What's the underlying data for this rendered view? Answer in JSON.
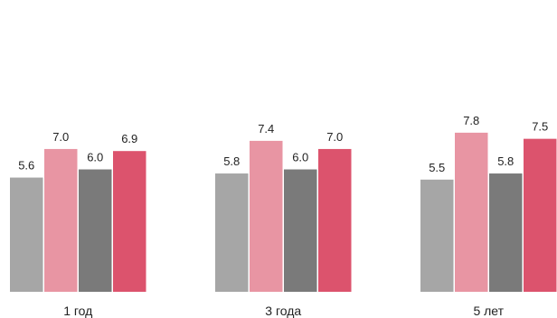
{
  "chart_data": {
    "type": "bar",
    "title": "",
    "xlabel": "",
    "ylabel": "",
    "ylim": [
      0,
      9.3
    ],
    "grid": false,
    "legend": "none",
    "categories": [
      "1 год",
      "3 года",
      "5 лет"
    ],
    "series": [
      {
        "values": [
          5.6,
          5.8,
          5.5
        ],
        "labels": [
          "5.6",
          "5.8",
          "5.5"
        ],
        "color": "#a6a6a6"
      },
      {
        "values": [
          7.0,
          7.4,
          7.8
        ],
        "labels": [
          "7.0",
          "7.4",
          "7.8"
        ],
        "color": "#e895a3"
      },
      {
        "values": [
          6.0,
          6.0,
          5.8
        ],
        "labels": [
          "6.0",
          "6.0",
          "5.8"
        ],
        "color": "#7a7a7a"
      },
      {
        "values": [
          6.9,
          7.0,
          7.5
        ],
        "labels": [
          "6.9",
          "7.0",
          "7.5"
        ],
        "color": "#dc536d"
      }
    ]
  }
}
